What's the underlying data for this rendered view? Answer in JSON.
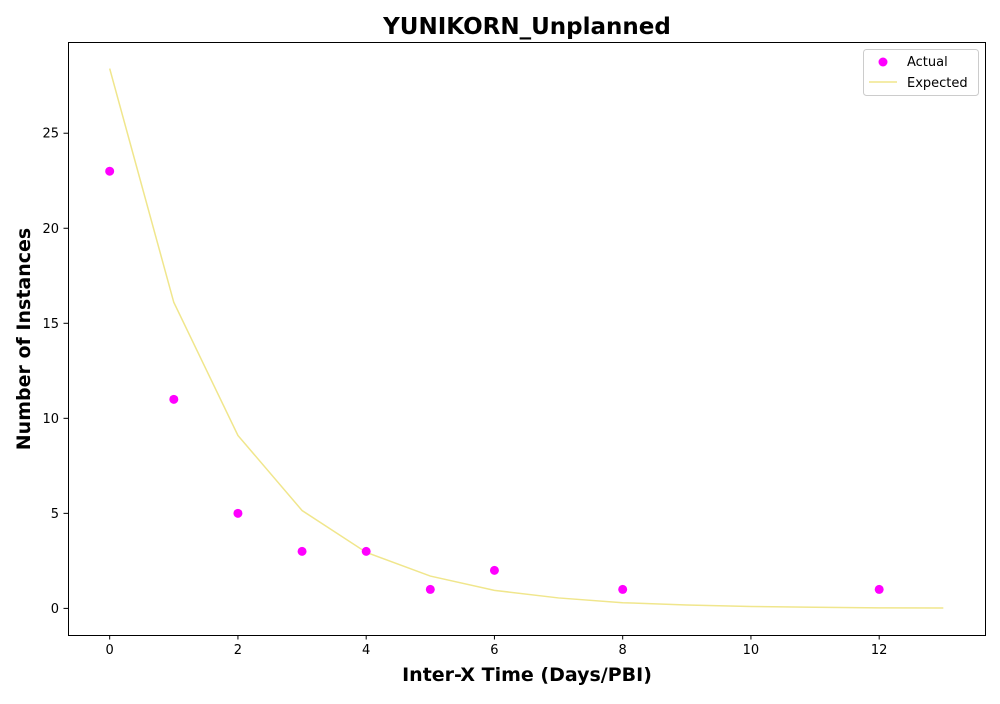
{
  "chart_data": {
    "type": "scatter",
    "title": "YUNIKORN_Unplanned",
    "xlabel": "Inter-X Time (Days/PBI)",
    "ylabel": "Number of Instances",
    "xlim": [
      -0.65,
      13.65
    ],
    "ylim": [
      -1.4,
      29.8
    ],
    "x_ticks": [
      0,
      2,
      4,
      6,
      8,
      10,
      12
    ],
    "y_ticks": [
      0,
      5,
      10,
      15,
      20,
      25
    ],
    "grid": false,
    "legend_position": "top-right",
    "series": [
      {
        "name": "Actual",
        "kind": "scatter",
        "color": "#ff00ff",
        "x": [
          0,
          1,
          2,
          3,
          4,
          5,
          6,
          8,
          12
        ],
        "y": [
          23,
          11,
          5,
          3,
          3,
          1,
          2,
          1,
          1
        ]
      },
      {
        "name": "Expected",
        "kind": "line",
        "color": "#f0e68c",
        "x": [
          0,
          1,
          2,
          3,
          4,
          5,
          6,
          7,
          8,
          9,
          10,
          11,
          12,
          13
        ],
        "y": [
          28.4,
          16.1,
          9.1,
          5.15,
          2.95,
          1.7,
          0.95,
          0.55,
          0.3,
          0.18,
          0.1,
          0.06,
          0.03,
          0.02
        ]
      }
    ]
  }
}
